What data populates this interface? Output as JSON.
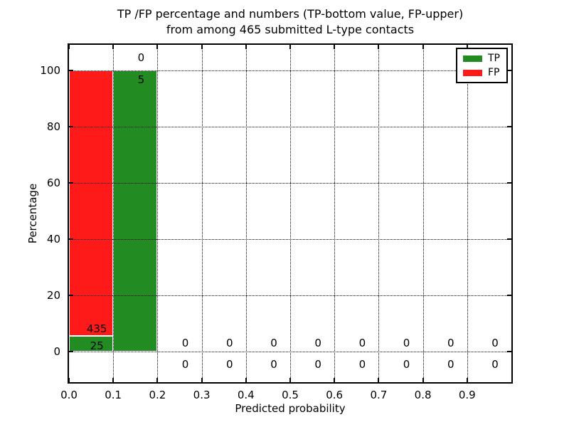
{
  "chart_data": {
    "type": "bar",
    "stacked": true,
    "title_lines": [
      "TP /FP percentage and numbers (TP-bottom value, FP-upper)",
      "from among 465 submitted L-type contacts"
    ],
    "xlabel": "Predicted probability",
    "ylabel": "Percentage",
    "xlim": [
      0.0,
      1.0
    ],
    "ylim": [
      -11,
      109
    ],
    "xticks": [
      0.0,
      0.1,
      0.2,
      0.3,
      0.4,
      0.5,
      0.6,
      0.7,
      0.8,
      0.9
    ],
    "xtick_labels": [
      "0.0",
      "0.1",
      "0.2",
      "0.3",
      "0.4",
      "0.5",
      "0.6",
      "0.7",
      "0.8",
      "0.9"
    ],
    "yticks": [
      0,
      20,
      40,
      60,
      80,
      100
    ],
    "ytick_labels": [
      "0",
      "20",
      "40",
      "60",
      "80",
      "100"
    ],
    "grid": "dotted-over-bars",
    "colors": {
      "tp": "#228b22",
      "fp": "#ff1a1a",
      "grid": "#000000",
      "background": "#ffffff"
    },
    "legend": {
      "position": "upper-right",
      "entries": [
        {
          "label": "TP",
          "color": "#228b22"
        },
        {
          "label": "FP",
          "color": "#ff1a1a"
        }
      ]
    },
    "bins": [
      {
        "range": [
          0.0,
          0.1
        ],
        "tp_count": "25",
        "fp_count": "435",
        "tp_pct": 5.43,
        "fp_pct": 94.57,
        "label_x": 0.063,
        "fp_label_y": 8.0,
        "tp_label_y": 1.8
      },
      {
        "range": [
          0.1,
          0.2
        ],
        "tp_count": "5",
        "fp_count": "0",
        "tp_pct": 100.0,
        "fp_pct": 0.0,
        "label_x": 0.163,
        "fp_label_y": 104.5,
        "tp_label_y": 96.5
      },
      {
        "range": [
          0.2,
          0.3
        ],
        "tp_count": "0",
        "fp_count": "0",
        "tp_pct": 0.0,
        "fp_pct": 0.0,
        "label_x": 0.263,
        "fp_label_y": 3.0,
        "tp_label_y": -4.6
      },
      {
        "range": [
          0.3,
          0.4
        ],
        "tp_count": "0",
        "fp_count": "0",
        "tp_pct": 0.0,
        "fp_pct": 0.0,
        "label_x": 0.363,
        "fp_label_y": 3.0,
        "tp_label_y": -4.6
      },
      {
        "range": [
          0.4,
          0.5
        ],
        "tp_count": "0",
        "fp_count": "0",
        "tp_pct": 0.0,
        "fp_pct": 0.0,
        "label_x": 0.463,
        "fp_label_y": 3.0,
        "tp_label_y": -4.6
      },
      {
        "range": [
          0.5,
          0.6
        ],
        "tp_count": "0",
        "fp_count": "0",
        "tp_pct": 0.0,
        "fp_pct": 0.0,
        "label_x": 0.563,
        "fp_label_y": 3.0,
        "tp_label_y": -4.6
      },
      {
        "range": [
          0.6,
          0.7
        ],
        "tp_count": "0",
        "fp_count": "0",
        "tp_pct": 0.0,
        "fp_pct": 0.0,
        "label_x": 0.663,
        "fp_label_y": 3.0,
        "tp_label_y": -4.6
      },
      {
        "range": [
          0.7,
          0.8
        ],
        "tp_count": "0",
        "fp_count": "0",
        "tp_pct": 0.0,
        "fp_pct": 0.0,
        "label_x": 0.763,
        "fp_label_y": 3.0,
        "tp_label_y": -4.6
      },
      {
        "range": [
          0.8,
          0.9
        ],
        "tp_count": "0",
        "fp_count": "0",
        "tp_pct": 0.0,
        "fp_pct": 0.0,
        "label_x": 0.863,
        "fp_label_y": 3.0,
        "tp_label_y": -4.6
      },
      {
        "range": [
          0.9,
          1.0
        ],
        "tp_count": "0",
        "fp_count": "0",
        "tp_pct": 0.0,
        "fp_pct": 0.0,
        "label_x": 0.963,
        "fp_label_y": 3.0,
        "tp_label_y": -4.6
      }
    ]
  }
}
